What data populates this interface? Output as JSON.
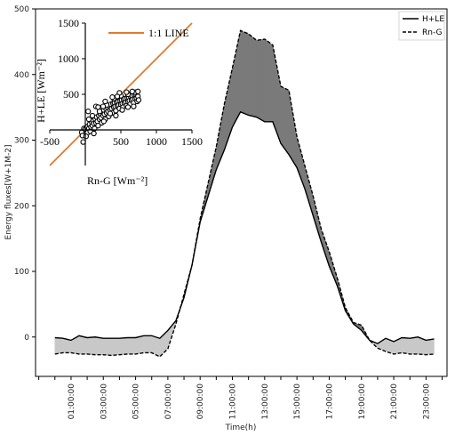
{
  "chart_data": [
    {
      "type": "line",
      "xlabel": "Time(h)",
      "ylabel": "Energy fluxes[W+1M-2]",
      "ylim": [
        -60,
        500
      ],
      "yticks": [
        0,
        100,
        200,
        300,
        400,
        500
      ],
      "xticks": [
        "01:00:00",
        "03:00:00",
        "05:00:00",
        "07:00:00",
        "09:00:00",
        "11:00:00",
        "13:00:00",
        "15:00:00",
        "17:00:00",
        "19:00:00",
        "21:00:00",
        "23:00:00"
      ],
      "legend": {
        "position": "top-right",
        "entries": [
          "H+LE",
          "Rn-G"
        ]
      },
      "x": [
        0,
        0.5,
        1,
        1.5,
        2,
        2.5,
        3,
        3.5,
        4,
        4.5,
        5,
        5.5,
        6,
        6.5,
        7,
        7.5,
        8,
        8.5,
        9,
        9.5,
        10,
        10.5,
        11,
        11.5,
        12,
        12.5,
        13,
        13.5,
        14,
        14.5,
        15,
        15.5,
        16,
        16.5,
        17,
        17.5,
        18,
        18.5,
        19,
        19.5,
        20,
        20.5,
        21,
        21.5,
        22,
        22.5,
        23,
        23.5
      ],
      "series": [
        {
          "name": "H+LE",
          "style": "solid",
          "values": [
            -1,
            -2,
            -5,
            2,
            -1,
            0,
            -2,
            -2,
            -2,
            -1,
            -1,
            2,
            2,
            -2,
            10,
            25,
            60,
            110,
            175,
            215,
            255,
            285,
            320,
            343,
            338,
            335,
            328,
            328,
            295,
            278,
            258,
            225,
            185,
            145,
            108,
            78,
            40,
            20,
            10,
            -5,
            -10,
            -2,
            -7,
            -1,
            -2,
            0,
            -5,
            -3
          ]
        },
        {
          "name": "Rn-G",
          "style": "dashed",
          "values": [
            -26,
            -24,
            -24,
            -26,
            -26,
            -27,
            -27,
            -28,
            -27,
            -26,
            -26,
            -24,
            -24,
            -30,
            -18,
            20,
            65,
            110,
            180,
            235,
            290,
            355,
            410,
            467,
            462,
            452,
            454,
            445,
            382,
            376,
            305,
            260,
            215,
            165,
            130,
            90,
            45,
            22,
            18,
            -5,
            -17,
            -22,
            -26,
            -24,
            -26,
            -26,
            -27,
            -26
          ]
        }
      ],
      "fill": {
        "daytime_color": "#7a7a7a",
        "nighttime_color": "#c8c8c8"
      }
    },
    {
      "type": "scatter",
      "xlabel": "Rn-G [Wm⁻²]",
      "ylabel": "H+LE [Wm⁻²]",
      "xlim": [
        -500,
        1500
      ],
      "ylim": [
        -500,
        1500
      ],
      "xticks": [
        -500,
        500,
        1000,
        1500
      ],
      "yticks": [
        500,
        1000,
        1500
      ],
      "reference_line": {
        "label": "1:1 LINE",
        "color": "#e07b2a"
      },
      "points": [
        [
          -50,
          -35
        ],
        [
          -20,
          20
        ],
        [
          0,
          10
        ],
        [
          20,
          40
        ],
        [
          30,
          -40
        ],
        [
          50,
          20
        ],
        [
          60,
          80
        ],
        [
          80,
          40
        ],
        [
          90,
          110
        ],
        [
          100,
          60
        ],
        [
          110,
          130
        ],
        [
          120,
          90
        ],
        [
          130,
          20
        ],
        [
          140,
          150
        ],
        [
          150,
          100
        ],
        [
          160,
          180
        ],
        [
          170,
          120
        ],
        [
          180,
          60
        ],
        [
          190,
          200
        ],
        [
          200,
          150
        ],
        [
          210,
          230
        ],
        [
          220,
          170
        ],
        [
          230,
          100
        ],
        [
          240,
          260
        ],
        [
          250,
          200
        ],
        [
          260,
          280
        ],
        [
          270,
          220
        ],
        [
          280,
          150
        ],
        [
          290,
          300
        ],
        [
          300,
          240
        ],
        [
          310,
          320
        ],
        [
          320,
          260
        ],
        [
          330,
          190
        ],
        [
          340,
          340
        ],
        [
          350,
          280
        ],
        [
          360,
          360
        ],
        [
          370,
          300
        ],
        [
          380,
          240
        ],
        [
          390,
          370
        ],
        [
          400,
          320
        ],
        [
          410,
          380
        ],
        [
          420,
          330
        ],
        [
          430,
          270
        ],
        [
          440,
          390
        ],
        [
          450,
          340
        ],
        [
          460,
          400
        ],
        [
          470,
          350
        ],
        [
          480,
          300
        ],
        [
          490,
          410
        ],
        [
          500,
          360
        ],
        [
          510,
          420
        ],
        [
          520,
          370
        ],
        [
          530,
          320
        ],
        [
          540,
          430
        ],
        [
          550,
          380
        ],
        [
          560,
          440
        ],
        [
          570,
          390
        ],
        [
          580,
          340
        ],
        [
          590,
          450
        ],
        [
          600,
          400
        ],
        [
          610,
          460
        ],
        [
          620,
          410
        ],
        [
          630,
          360
        ],
        [
          640,
          470
        ],
        [
          650,
          420
        ],
        [
          660,
          480
        ],
        [
          670,
          430
        ],
        [
          680,
          380
        ],
        [
          690,
          490
        ],
        [
          700,
          440
        ],
        [
          710,
          500
        ],
        [
          720,
          450
        ],
        [
          730,
          400
        ],
        [
          740,
          470
        ],
        [
          750,
          420
        ],
        [
          -40,
          -80
        ],
        [
          10,
          -90
        ],
        [
          -30,
          -170
        ],
        [
          70,
          -20
        ],
        [
          120,
          -50
        ],
        [
          40,
          260
        ],
        [
          150,
          330
        ],
        [
          260,
          120
        ],
        [
          350,
          230
        ],
        [
          430,
          200
        ],
        [
          520,
          280
        ],
        [
          600,
          320
        ],
        [
          680,
          330
        ],
        [
          100,
          200
        ],
        [
          200,
          260
        ],
        [
          300,
          350
        ],
        [
          400,
          440
        ],
        [
          500,
          480
        ],
        [
          600,
          500
        ],
        [
          700,
          530
        ],
        [
          180,
          320
        ],
        [
          280,
          400
        ],
        [
          380,
          460
        ],
        [
          480,
          520
        ],
        [
          580,
          530
        ],
        [
          660,
          540
        ],
        [
          740,
          540
        ],
        [
          50,
          150
        ],
        [
          250,
          330
        ],
        [
          450,
          470
        ]
      ]
    }
  ]
}
